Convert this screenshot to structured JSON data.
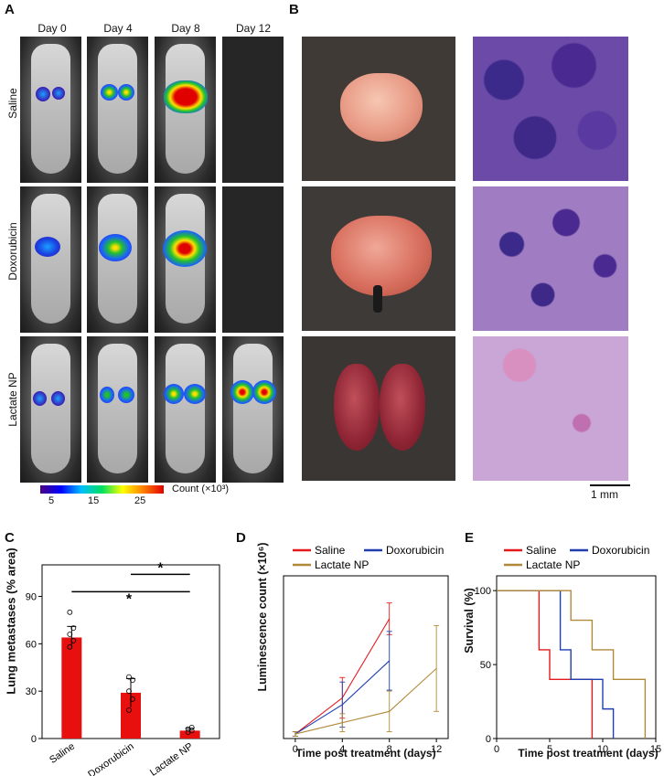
{
  "panels": {
    "a": "A",
    "b": "B",
    "c": "C",
    "d": "D",
    "e": "E"
  },
  "panel_a": {
    "days": [
      "Day 0",
      "Day 4",
      "Day 8",
      "Day 12"
    ],
    "rows": [
      "Saline",
      "Doxorubicin",
      "Lactate NP"
    ],
    "colorbar": {
      "ticks": [
        "5",
        "15",
        "25"
      ],
      "label": "Count (×10³)"
    }
  },
  "panel_b": {
    "scalebar": "1 mm"
  },
  "colors": {
    "saline": "#e41a1c",
    "doxorubicin": "#1f3fb0",
    "lactate": "#b08a3a",
    "bar": "#e8100f"
  },
  "chart_data": [
    {
      "type": "bar",
      "panel": "C",
      "categories": [
        "Saline",
        "Doxorubicin",
        "Lactate NP"
      ],
      "values": [
        64,
        29,
        5
      ],
      "errors": [
        7,
        9,
        1.5
      ],
      "points": [
        [
          58,
          62,
          66,
          70,
          80
        ],
        [
          18,
          25,
          30,
          37,
          39
        ],
        [
          4,
          5,
          6,
          7
        ]
      ],
      "ylabel": "Lung metastases (% area)",
      "ylim": [
        0,
        110
      ],
      "yticks": [
        "0",
        "30",
        "60",
        "90"
      ],
      "significance": [
        "*",
        "*"
      ]
    },
    {
      "type": "line",
      "panel": "D",
      "ylabel": "Luminescence count (×10⁶)",
      "xlabel": "Time post treatment (days)",
      "xlim": [
        -1,
        13
      ],
      "ylim": [
        0,
        3.6
      ],
      "xticks": [
        "0",
        "4",
        "8",
        "12"
      ],
      "series": [
        {
          "name": "Saline",
          "x": [
            0,
            4,
            8
          ],
          "y": [
            0.1,
            0.9,
            2.65
          ],
          "err": [
            0.05,
            0.45,
            0.35
          ]
        },
        {
          "name": "Doxorubicin",
          "x": [
            0,
            4,
            8
          ],
          "y": [
            0.1,
            0.75,
            1.72
          ],
          "err": [
            0.05,
            0.5,
            0.65
          ]
        },
        {
          "name": "Lactate NP",
          "x": [
            0,
            4,
            8,
            12
          ],
          "y": [
            0.1,
            0.35,
            0.6,
            1.55
          ],
          "err": [
            0.05,
            0.2,
            0.45,
            0.95
          ]
        }
      ]
    },
    {
      "type": "line",
      "panel": "E",
      "ylabel": "Survival (%)",
      "xlabel": "Time post treatment (days)",
      "xlim": [
        0,
        15
      ],
      "ylim": [
        0,
        110
      ],
      "xticks": [
        "0",
        "5",
        "10",
        "15"
      ],
      "yticks": [
        "0",
        "50",
        "100"
      ],
      "series": [
        {
          "name": "Saline",
          "steps": [
            [
              0,
              100
            ],
            [
              4,
              60
            ],
            [
              5,
              40
            ],
            [
              9,
              0
            ]
          ]
        },
        {
          "name": "Doxorubicin",
          "steps": [
            [
              0,
              100
            ],
            [
              6,
              60
            ],
            [
              7,
              40
            ],
            [
              10,
              20
            ],
            [
              11,
              0
            ]
          ]
        },
        {
          "name": "Lactate NP",
          "steps": [
            [
              0,
              100
            ],
            [
              7,
              80
            ],
            [
              9,
              60
            ],
            [
              11,
              40
            ],
            [
              14,
              0
            ]
          ]
        }
      ]
    }
  ]
}
